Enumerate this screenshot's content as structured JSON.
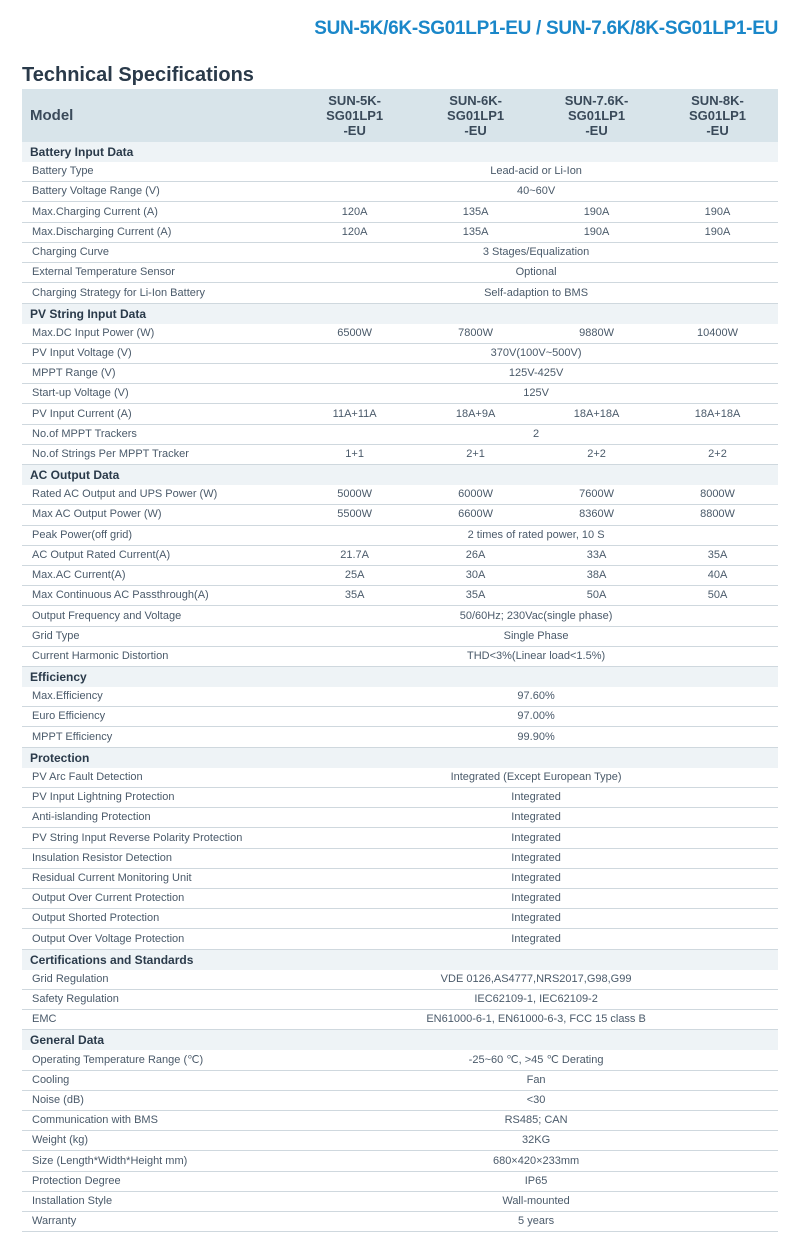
{
  "header": {
    "product_title": "SUN-5K/6K-SG01LP1-EU / SUN-7.6K/8K-SG01LP1-EU",
    "page_heading": "Technical Specifications"
  },
  "colors": {
    "brand": "#1a87c9",
    "headerRow": "#d8e4ea",
    "sectionRow": "#eef3f6",
    "border": "#cfd8de"
  },
  "table": {
    "model_label": "Model",
    "models": [
      "SUN-5K-SG01LP1-EU",
      "SUN-6K-SG01LP1-EU",
      "SUN-7.6K-SG01LP1-EU",
      "SUN-8K-SG01LP1-EU"
    ],
    "sections": [
      {
        "title": "Battery Input Data",
        "rows": [
          {
            "label": "Battery Type",
            "span": "Lead-acid or Li-Ion"
          },
          {
            "label": "Battery Voltage Range (V)",
            "span": "40~60V"
          },
          {
            "label": "Max.Charging Current (A)",
            "cells": [
              "120A",
              "135A",
              "190A",
              "190A"
            ]
          },
          {
            "label": "Max.Discharging Current (A)",
            "cells": [
              "120A",
              "135A",
              "190A",
              "190A"
            ]
          },
          {
            "label": "Charging Curve",
            "span": "3 Stages/Equalization"
          },
          {
            "label": "External Temperature Sensor",
            "span": "Optional"
          },
          {
            "label": "Charging Strategy for Li-Ion Battery",
            "span": "Self-adaption to BMS"
          }
        ]
      },
      {
        "title": "PV String Input Data",
        "rows": [
          {
            "label": "Max.DC Input Power (W)",
            "cells": [
              "6500W",
              "7800W",
              "9880W",
              "10400W"
            ]
          },
          {
            "label": "PV Input Voltage (V)",
            "span": "370V(100V~500V)"
          },
          {
            "label": "MPPT Range (V)",
            "span": "125V-425V"
          },
          {
            "label": "Start-up Voltage (V)",
            "span": "125V"
          },
          {
            "label": "PV Input Current (A)",
            "cells": [
              "11A+11A",
              "18A+9A",
              "18A+18A",
              "18A+18A"
            ]
          },
          {
            "label": "No.of MPPT Trackers",
            "span": "2"
          },
          {
            "label": "No.of Strings Per MPPT Tracker",
            "cells": [
              "1+1",
              "2+1",
              "2+2",
              "2+2"
            ]
          }
        ]
      },
      {
        "title": "AC Output Data",
        "rows": [
          {
            "label": "Rated AC Output and UPS Power (W)",
            "cells": [
              "5000W",
              "6000W",
              "7600W",
              "8000W"
            ]
          },
          {
            "label": "Max AC Output Power (W)",
            "cells": [
              "5500W",
              "6600W",
              "8360W",
              "8800W"
            ]
          },
          {
            "label": "Peak Power(off grid)",
            "span": "2 times of rated power, 10 S"
          },
          {
            "label": "AC Output Rated Current(A)",
            "cells": [
              "21.7A",
              "26A",
              "33A",
              "35A"
            ]
          },
          {
            "label": "Max.AC Current(A)",
            "cells": [
              "25A",
              "30A",
              "38A",
              "40A"
            ]
          },
          {
            "label": "Max Continuous AC Passthrough(A)",
            "cells": [
              "35A",
              "35A",
              "50A",
              "50A"
            ]
          },
          {
            "label": "Output Frequency and Voltage",
            "span": "50/60Hz; 230Vac(single phase)"
          },
          {
            "label": "Grid Type",
            "span": "Single Phase"
          },
          {
            "label": "Current Harmonic Distortion",
            "span": "THD<3%(Linear load<1.5%)"
          }
        ]
      },
      {
        "title": "Efficiency",
        "rows": [
          {
            "label": "Max.Efficiency",
            "span": "97.60%"
          },
          {
            "label": "Euro Efficiency",
            "span": "97.00%"
          },
          {
            "label": "MPPT Efficiency",
            "span": "99.90%"
          }
        ]
      },
      {
        "title": "Protection",
        "rows": [
          {
            "label": "PV Arc Fault Detection",
            "span": "Integrated (Except European Type)"
          },
          {
            "label": "PV Input Lightning Protection",
            "span": "Integrated"
          },
          {
            "label": "Anti-islanding Protection",
            "span": "Integrated"
          },
          {
            "label": "PV String Input Reverse Polarity Protection",
            "span": "Integrated"
          },
          {
            "label": "Insulation Resistor Detection",
            "span": "Integrated"
          },
          {
            "label": "Residual Current Monitoring Unit",
            "span": "Integrated"
          },
          {
            "label": "Output Over Current Protection",
            "span": "Integrated"
          },
          {
            "label": "Output Shorted Protection",
            "span": "Integrated"
          },
          {
            "label": "Output Over Voltage Protection",
            "span": "Integrated"
          }
        ]
      },
      {
        "title": "Certifications and Standards",
        "rows": [
          {
            "label": "Grid Regulation",
            "span": "VDE 0126,AS4777,NRS2017,G98,G99"
          },
          {
            "label": "Safety Regulation",
            "span": "IEC62109-1, IEC62109-2"
          },
          {
            "label": "EMC",
            "span": "EN61000-6-1, EN61000-6-3, FCC 15 class B"
          }
        ]
      },
      {
        "title": "General Data",
        "rows": [
          {
            "label": "Operating Temperature Range (℃)",
            "span": "-25~60 ℃, >45 ℃ Derating"
          },
          {
            "label": "Cooling",
            "span": "Fan"
          },
          {
            "label": "Noise (dB)",
            "span": "<30"
          },
          {
            "label": "Communication with BMS",
            "span": "RS485; CAN"
          },
          {
            "label": "Weight (kg)",
            "span": "32KG"
          },
          {
            "label": "Size (Length*Width*Height mm)",
            "span": "680×420×233mm"
          },
          {
            "label": "Protection Degree",
            "span": "IP65"
          },
          {
            "label": "Installation Style",
            "span": "Wall-mounted"
          },
          {
            "label": "Warranty",
            "span": "5 years"
          }
        ]
      }
    ]
  }
}
